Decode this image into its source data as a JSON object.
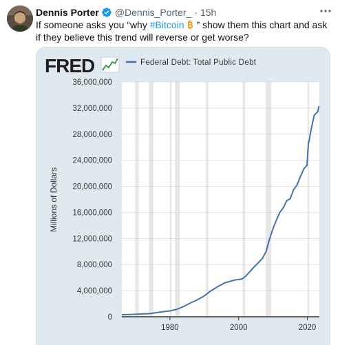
{
  "tweet": {
    "author_name": "Dennis Porter",
    "handle": "@Dennis_Porter_",
    "separator": "·",
    "time": "15h",
    "more_icon": "ellipsis-icon",
    "text_before": "If someone asks you “why ",
    "hashtag": "#Bitcoin",
    "text_after": " ” show them this chart and ask if they believe this trend will reverse or get worse?",
    "colors": {
      "hashtag": "#1d9bf0",
      "verified": "#1d9bf0",
      "bitcoin": "#f7931a"
    }
  },
  "fred": {
    "logo_text": "FRED",
    "legend_label": "Federal Debt: Total Public Debt"
  },
  "chart_data": {
    "type": "line",
    "ylabel": "Millions of Dollars",
    "yticks": [
      0,
      4000000,
      8000000,
      12000000,
      16000000,
      20000000,
      24000000,
      28000000,
      32000000,
      36000000
    ],
    "ytick_labels": [
      "0",
      "4,000,000",
      "8,000,000",
      "12,000,000",
      "16,000,000",
      "20,000,000",
      "24,000,000",
      "28,000,000",
      "32,000,000",
      "36,000,000"
    ],
    "xticks": [
      1980,
      2000,
      2020
    ],
    "xtick_labels": [
      "1980",
      "2000",
      "2020"
    ],
    "xlim": [
      1966,
      2023.5
    ],
    "ylim": [
      0,
      36000000
    ],
    "line_color": "#4572a7",
    "recessions": [
      [
        1969.9,
        1970.9
      ],
      [
        1973.9,
        1975.2
      ],
      [
        1980.0,
        1980.5
      ],
      [
        1981.5,
        1982.9
      ],
      [
        1990.5,
        1991.2
      ],
      [
        2001.2,
        2001.9
      ],
      [
        2007.9,
        2009.5
      ],
      [
        2020.1,
        2020.3
      ]
    ],
    "series": [
      {
        "x": [
          1966,
          1968,
          1970,
          1972,
          1974,
          1976,
          1978,
          1980,
          1982,
          1984,
          1986,
          1988,
          1990,
          1992,
          1994,
          1996,
          1998,
          1999,
          2000,
          2001,
          2002,
          2004,
          2006,
          2007,
          2008,
          2009,
          2010,
          2011,
          2012,
          2013,
          2014,
          2015,
          2016,
          2017,
          2018,
          2019,
          2019.9,
          2020.3,
          2020.5,
          2021,
          2022,
          2023,
          2023.4
        ],
        "y": [
          320000,
          350000,
          380000,
          430000,
          480000,
          620000,
          780000,
          900000,
          1140000,
          1570000,
          2120000,
          2600000,
          3200000,
          4000000,
          4640000,
          5200000,
          5500000,
          5650000,
          5700000,
          5800000,
          6200000,
          7350000,
          8450000,
          9000000,
          10000000,
          11900000,
          13500000,
          14800000,
          16000000,
          16700000,
          17800000,
          18100000,
          19500000,
          20200000,
          21500000,
          22700000,
          23200000,
          26500000,
          26900000,
          28400000,
          30900000,
          31400000,
          32300000
        ]
      }
    ]
  }
}
